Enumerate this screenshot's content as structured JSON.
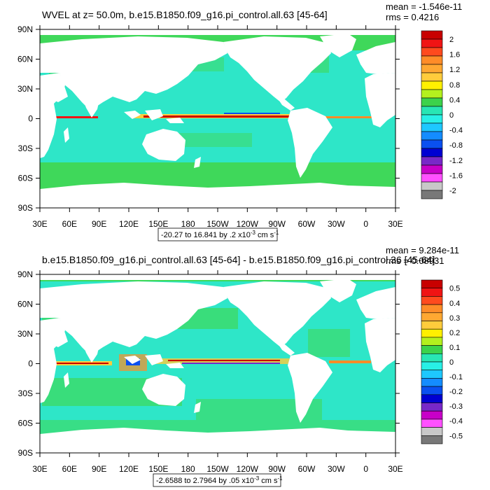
{
  "x_ticks": [
    "30E",
    "60E",
    "90E",
    "120E",
    "150E",
    "180",
    "150W",
    "120W",
    "90W",
    "60W",
    "30W",
    "0",
    "30E"
  ],
  "y_ticks": [
    "90N",
    "60N",
    "30N",
    "0",
    "30S",
    "60S",
    "90S"
  ],
  "ocean_color": "#2ee6c8",
  "land_color": "#ffffff",
  "green_color": "#3fd85a",
  "panels": [
    {
      "id": "top",
      "title": "WVEL at z=  50.0m, b.e15.B1850.f09_g16.pi_control.all.63 [45-64]",
      "mean": "mean = -1.546e-11",
      "rms": "rms = 0.4216",
      "range_label": "-20.27 to 16.841 by .2 x10",
      "range_exp": "-3",
      "range_unit": " cm s",
      "range_unit_exp": "-1",
      "colorbar": {
        "labels": [
          "2",
          "1.6",
          "1.2",
          "0.8",
          "0.4",
          "0",
          "-0.4",
          "-0.8",
          "-1.2",
          "-1.6",
          "-2"
        ],
        "colors": [
          "#c80000",
          "#f01414",
          "#ff4a1e",
          "#ff8c28",
          "#ffa832",
          "#ffcc3c",
          "#fff000",
          "#b4f01e",
          "#3cd24b",
          "#28e6b4",
          "#28f0e6",
          "#1ec8ff",
          "#148cff",
          "#0a50f0",
          "#0000d2",
          "#7828c8",
          "#c800c8",
          "#ff50ff",
          "#c8c8c8",
          "#787878"
        ]
      }
    },
    {
      "id": "bottom",
      "title": "b.e15.B1850.f09_g16.pi_control.all.63 [45-64] - b.e15.B1850.f09_g16.pi_control.36 [45-64]",
      "mean": "mean = 9.284e-11",
      "rms": "rms = 0.08931",
      "range_label": "-2.6588 to 2.7964 by .05 x10",
      "range_exp": "-3",
      "range_unit": " cm s",
      "range_unit_exp": "-1",
      "colorbar": {
        "labels": [
          "0.5",
          "0.4",
          "0.3",
          "0.2",
          "0.1",
          "0",
          "-0.1",
          "-0.2",
          "-0.3",
          "-0.4",
          "-0.5"
        ],
        "colors": [
          "#c80000",
          "#f01414",
          "#ff4a1e",
          "#ff8c28",
          "#ffa832",
          "#ffcc3c",
          "#fff000",
          "#b4f01e",
          "#3cd24b",
          "#28e6b4",
          "#28f0e6",
          "#1ec8ff",
          "#148cff",
          "#0a50f0",
          "#0000d2",
          "#7828c8",
          "#c800c8",
          "#ff50ff",
          "#c8c8c8",
          "#787878"
        ]
      }
    }
  ]
}
